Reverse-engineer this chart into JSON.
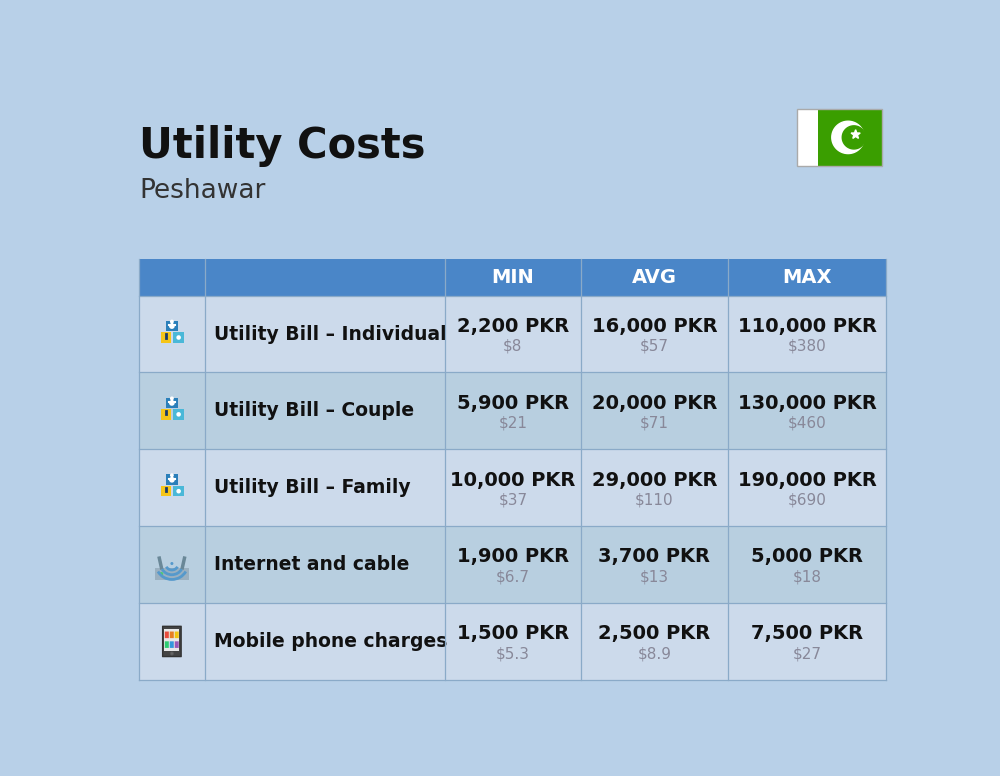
{
  "title": "Utility Costs",
  "subtitle": "Peshawar",
  "background_color": "#b8d0e8",
  "header_color": "#4a86c8",
  "row_color_even": "#ccdaeb",
  "row_color_odd": "#b8cfe0",
  "header_text_color": "#FFFFFF",
  "title_color": "#111111",
  "subtitle_color": "#333333",
  "main_text_color": "#111111",
  "sub_text_color": "#888899",
  "col_headers": [
    "MIN",
    "AVG",
    "MAX"
  ],
  "rows": [
    {
      "label": "Utility Bill – Individual",
      "min_pkr": "2,200 PKR",
      "min_usd": "$8",
      "avg_pkr": "16,000 PKR",
      "avg_usd": "$57",
      "max_pkr": "110,000 PKR",
      "max_usd": "$380"
    },
    {
      "label": "Utility Bill – Couple",
      "min_pkr": "5,900 PKR",
      "min_usd": "$21",
      "avg_pkr": "20,000 PKR",
      "avg_usd": "$71",
      "max_pkr": "130,000 PKR",
      "max_usd": "$460"
    },
    {
      "label": "Utility Bill – Family",
      "min_pkr": "10,000 PKR",
      "min_usd": "$37",
      "avg_pkr": "29,000 PKR",
      "avg_usd": "$110",
      "max_pkr": "190,000 PKR",
      "max_usd": "$690"
    },
    {
      "label": "Internet and cable",
      "min_pkr": "1,900 PKR",
      "min_usd": "$6.7",
      "avg_pkr": "3,700 PKR",
      "avg_usd": "$13",
      "max_pkr": "5,000 PKR",
      "max_usd": "$18"
    },
    {
      "label": "Mobile phone charges",
      "min_pkr": "1,500 PKR",
      "min_usd": "$5.3",
      "avg_pkr": "2,500 PKR",
      "avg_usd": "$8.9",
      "max_pkr": "7,500 PKR",
      "max_usd": "$27"
    }
  ],
  "flag_green_color": "#3a9e00",
  "divider_color": "#8aaac8"
}
